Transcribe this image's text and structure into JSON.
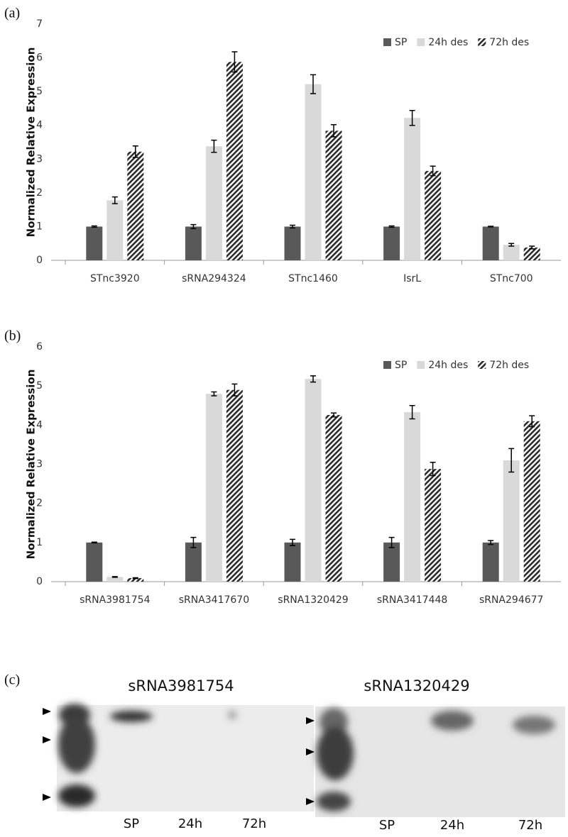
{
  "chart_data": [
    {
      "type": "bar",
      "panel_label": "(a)",
      "ylabel": "Normalized Relative Expression",
      "categories": [
        "STnc3920",
        "sRNA294324",
        "STnc1460",
        "IsrL",
        "STnc700"
      ],
      "series": [
        {
          "name": "SP",
          "color": "#595959",
          "hatch": false,
          "values": [
            1,
            1,
            1,
            1,
            1
          ],
          "errors": [
            0.02,
            0.06,
            0.04,
            0.02,
            0.01
          ]
        },
        {
          "name": "24h des",
          "color": "#d9d9d9",
          "hatch": false,
          "values": [
            1.78,
            3.38,
            5.22,
            4.22,
            0.46
          ],
          "errors": [
            0.1,
            0.18,
            0.28,
            0.22,
            0.04
          ]
        },
        {
          "name": "72h des",
          "color": "#2b2b2b",
          "hatch": true,
          "values": [
            3.22,
            5.88,
            3.84,
            2.65,
            0.38
          ],
          "errors": [
            0.17,
            0.3,
            0.18,
            0.14,
            0.04
          ]
        }
      ],
      "ylim": [
        0,
        7
      ],
      "yticks": [
        0,
        1,
        2,
        3,
        4,
        5,
        6,
        7
      ],
      "grid": false,
      "legend": "top-right"
    },
    {
      "type": "bar",
      "panel_label": "(b)",
      "ylabel": "Normalized Relative Expression",
      "categories": [
        "sRNA3981754",
        "sRNA3417670",
        "sRNA1320429",
        "sRNA3417448",
        "sRNA294677"
      ],
      "series": [
        {
          "name": "SP",
          "color": "#595959",
          "hatch": false,
          "values": [
            1,
            1,
            1,
            1,
            1
          ],
          "errors": [
            0.01,
            0.13,
            0.08,
            0.13,
            0.05
          ]
        },
        {
          "name": "24h des",
          "color": "#d9d9d9",
          "hatch": false,
          "values": [
            0.12,
            4.8,
            5.18,
            4.33,
            3.1
          ],
          "errors": [
            0.01,
            0.05,
            0.08,
            0.17,
            0.3
          ]
        },
        {
          "name": "72h des",
          "color": "#2b2b2b",
          "hatch": true,
          "values": [
            0.09,
            4.9,
            4.26,
            2.88,
            4.1
          ],
          "errors": [
            0.01,
            0.15,
            0.05,
            0.17,
            0.14
          ]
        }
      ],
      "ylim": [
        0,
        6
      ],
      "yticks": [
        0,
        1,
        2,
        3,
        4,
        5,
        6
      ],
      "grid": false,
      "legend": "top-right"
    }
  ],
  "blot": {
    "panel_label": "(c)",
    "blots": [
      {
        "title": "sRNA3981754",
        "lanes": [
          "SP",
          "24h",
          "72h"
        ]
      },
      {
        "title": "sRNA1320429",
        "lanes": [
          "SP",
          "24h",
          "72h"
        ]
      }
    ]
  }
}
